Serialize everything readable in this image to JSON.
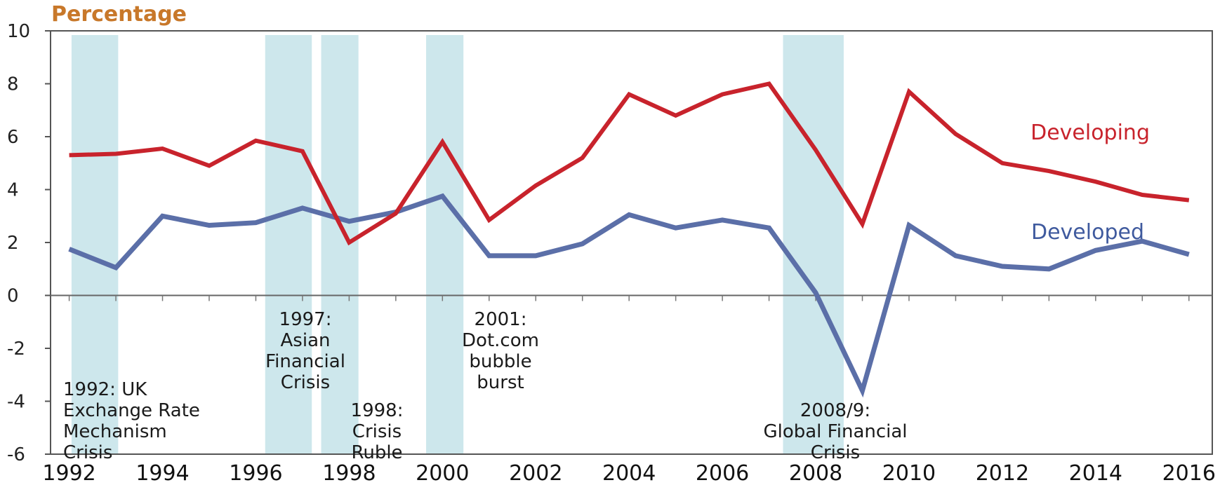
{
  "chart_data": {
    "type": "line",
    "ylabel": "Percentage",
    "ylim": [
      -6,
      10
    ],
    "yticks": [
      -6,
      -4,
      -2,
      0,
      2,
      4,
      6,
      8,
      10
    ],
    "ytick_labels": [
      "-6",
      "-4",
      "-2",
      "0",
      "2",
      "4",
      "6",
      "8",
      "10"
    ],
    "xlim": [
      1991.6,
      2016.5
    ],
    "xticks": [
      1992,
      1994,
      1996,
      1998,
      2000,
      2002,
      2004,
      2006,
      2008,
      2010,
      2012,
      2014,
      2016
    ],
    "xtick_labels": [
      "1992",
      "1994",
      "1996",
      "1998",
      "2000",
      "2002",
      "2004",
      "2006",
      "2008",
      "2010",
      "2012",
      "2014",
      "2016"
    ],
    "x": [
      1992,
      1993,
      1994,
      1995,
      1996,
      1997,
      1998,
      1999,
      2000,
      2001,
      2002,
      2003,
      2004,
      2005,
      2006,
      2007,
      2008,
      2009,
      2010,
      2011,
      2012,
      2013,
      2014,
      2015,
      2016
    ],
    "series": [
      {
        "name": "Developing",
        "color": "#c8232c",
        "values": [
          5.3,
          5.35,
          5.55,
          4.9,
          5.85,
          5.45,
          2.0,
          3.1,
          5.8,
          2.85,
          4.15,
          5.2,
          7.6,
          6.8,
          7.6,
          8.0,
          5.5,
          2.7,
          7.7,
          6.1,
          5.0,
          4.7,
          4.3,
          3.8,
          3.6
        ]
      },
      {
        "name": "Developed",
        "color": "#5b6fa8",
        "values": [
          1.75,
          1.05,
          3.0,
          2.65,
          2.75,
          3.3,
          2.8,
          3.15,
          3.75,
          1.5,
          1.5,
          1.95,
          3.05,
          2.55,
          2.85,
          2.55,
          0.1,
          -3.6,
          2.65,
          1.5,
          1.1,
          1.0,
          1.7,
          2.05,
          1.55
        ]
      }
    ],
    "shaded_periods": [
      {
        "name": "erm",
        "start": 1992.05,
        "end": 1993.05
      },
      {
        "name": "asian",
        "start": 1996.2,
        "end": 1997.2
      },
      {
        "name": "ruble",
        "start": 1997.4,
        "end": 1998.2
      },
      {
        "name": "dotcom",
        "start": 1999.65,
        "end": 2000.45
      },
      {
        "name": "gfc",
        "start": 2007.3,
        "end": 2008.6
      }
    ],
    "shade_color": "#cde7ec",
    "annotations": [
      {
        "name": "erm",
        "lines": [
          "1992: UK",
          "Exchange Rate",
          "Mechanism",
          "Crisis"
        ]
      },
      {
        "name": "asian",
        "lines": [
          "1997:",
          "Asian",
          "Financial",
          "Crisis"
        ]
      },
      {
        "name": "ruble",
        "lines": [
          "1998:",
          "Crisis",
          "Ruble"
        ]
      },
      {
        "name": "dotcom",
        "lines": [
          "2001:",
          "Dot.com",
          "bubble",
          "burst"
        ]
      },
      {
        "name": "gfc",
        "lines": [
          "2008/9:",
          "Global Financial",
          "Crisis"
        ]
      }
    ],
    "series_labels": [
      {
        "name": "Developing",
        "text": "Developing",
        "color": "#c8232c"
      },
      {
        "name": "Developed",
        "text": "Developed",
        "color": "#3f5a9e"
      }
    ],
    "ylabel_color": "#c8782a",
    "grid": false
  }
}
